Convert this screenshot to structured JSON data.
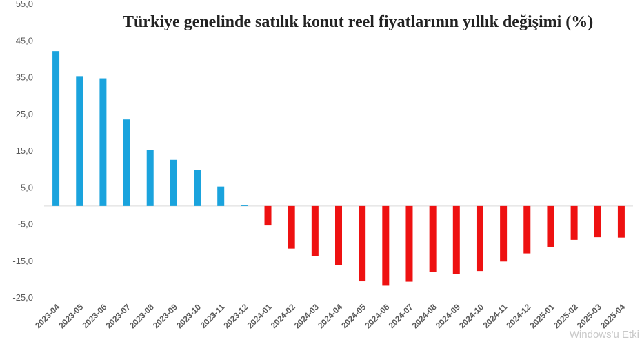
{
  "chart_data": {
    "type": "bar",
    "title": "Türkiye genelinde satılık konut reel fiyatlarının yıllık değişimi (%)",
    "xlabel": "",
    "ylabel": "",
    "ylim": [
      -25,
      55
    ],
    "yticks": [
      "55,0",
      "45,0",
      "35,0",
      "25,0",
      "15,0",
      "5,0",
      "-5,0",
      "-15,0",
      "-25,0"
    ],
    "ytick_values": [
      55,
      45,
      35,
      25,
      15,
      5,
      -5,
      -15,
      -25
    ],
    "grid": false,
    "legend": "none",
    "colors": {
      "positive": "#1aa3dd",
      "negative": "#ee1111",
      "zero_line": "#d9d9d9"
    },
    "categories": [
      "2023-04",
      "2023-05",
      "2023-06",
      "2023-07",
      "2023-08",
      "2023-09",
      "2023-10",
      "2023-11",
      "2023-12",
      "2024-01",
      "2024-02",
      "2024-03",
      "2024-04",
      "2024-05",
      "2024-06",
      "2024-07",
      "2024-08",
      "2024-09",
      "2024-10",
      "2024-11",
      "2024-12",
      "2025-01",
      "2025-02",
      "2025-03",
      "2025-04"
    ],
    "values": [
      42.2,
      35.4,
      34.8,
      23.6,
      15.2,
      12.6,
      9.8,
      5.3,
      0.3,
      -5.3,
      -11.6,
      -13.6,
      -16.1,
      -20.5,
      -21.7,
      -20.6,
      -17.9,
      -18.5,
      -17.7,
      -15.1,
      -12.9,
      -11.1,
      -9.2,
      -8.5,
      -8.6
    ]
  },
  "watermark": "Windows'u Etki"
}
